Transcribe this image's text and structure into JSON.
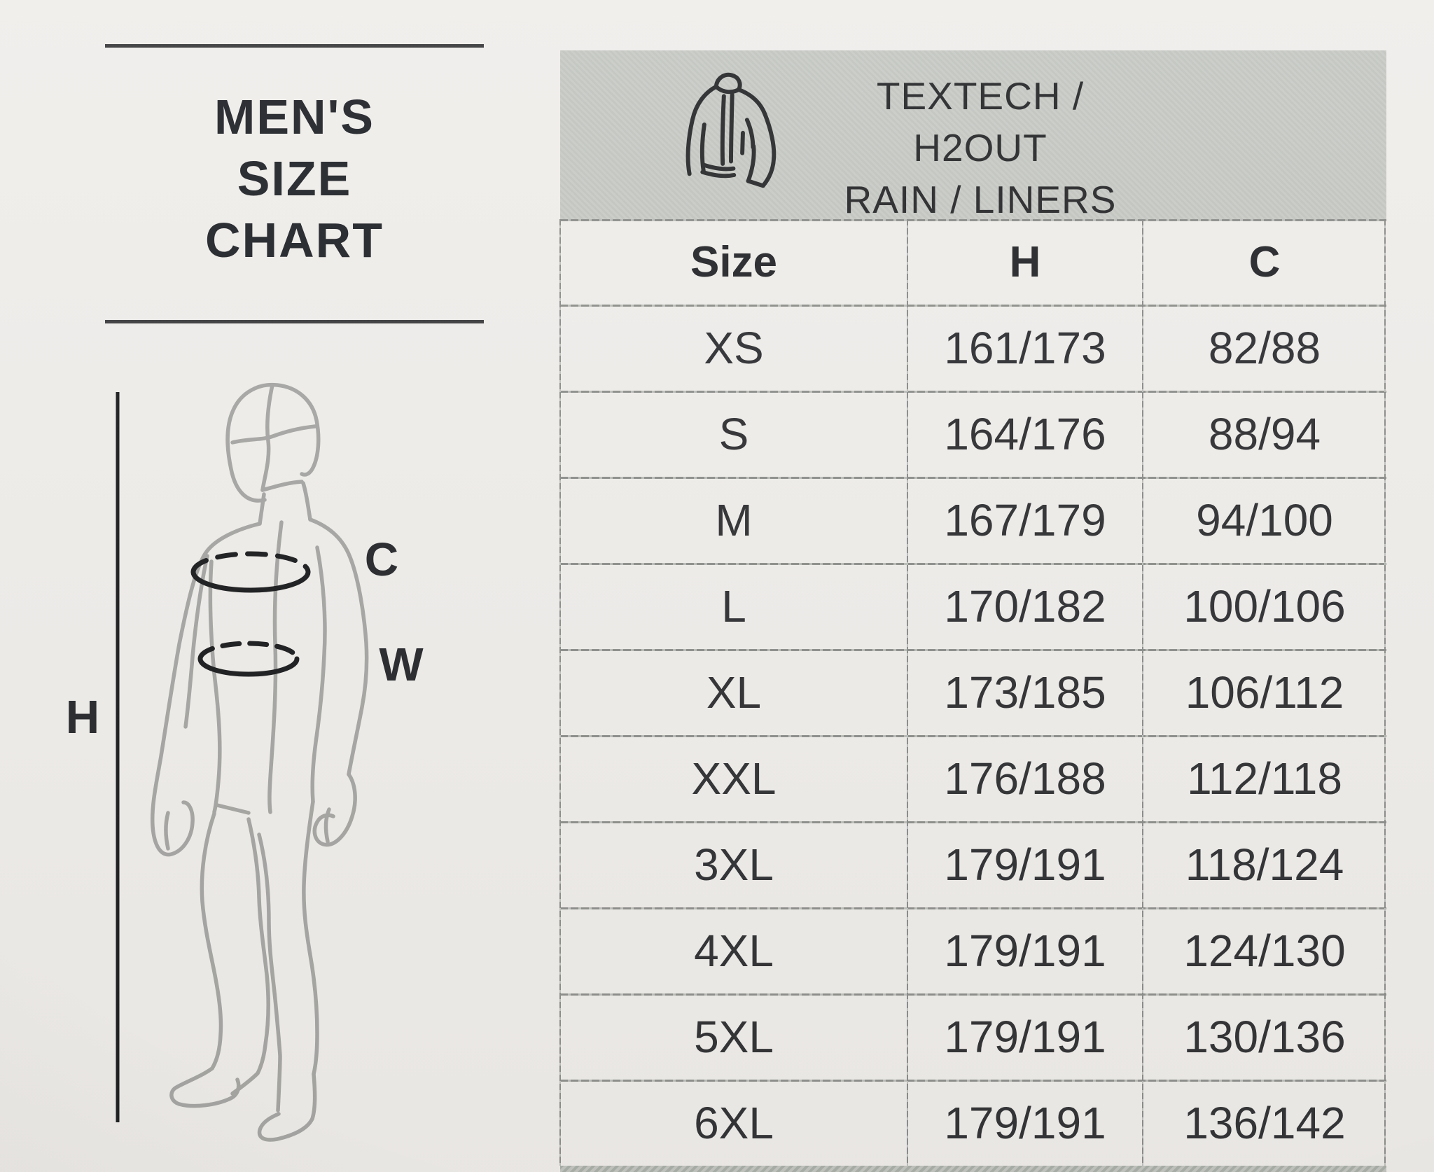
{
  "left_panel": {
    "title_lines": [
      "MEN'S",
      "SIZE",
      "CHART"
    ],
    "figure_labels": {
      "height": "H",
      "chest": "C",
      "waist": "W"
    }
  },
  "table": {
    "banner": {
      "icon": "jacket-icon",
      "line1": "TEXTECH / H2OUT",
      "line2": "RAIN / LINERS"
    },
    "columns": [
      "Size",
      "H",
      "C"
    ],
    "rows": [
      {
        "size": "XS",
        "h": "161/173",
        "c": "82/88"
      },
      {
        "size": "S",
        "h": "164/176",
        "c": "88/94"
      },
      {
        "size": "M",
        "h": "167/179",
        "c": "94/100"
      },
      {
        "size": "L",
        "h": "170/182",
        "c": "100/106"
      },
      {
        "size": "XL",
        "h": "173/185",
        "c": "106/112"
      },
      {
        "size": "XXL",
        "h": "176/188",
        "c": "112/118"
      },
      {
        "size": "3XL",
        "h": "179/191",
        "c": "118/124"
      },
      {
        "size": "4XL",
        "h": "179/191",
        "c": "124/130"
      },
      {
        "size": "5XL",
        "h": "179/191",
        "c": "130/136"
      },
      {
        "size": "6XL",
        "h": "179/191",
        "c": "136/142"
      }
    ]
  },
  "colors": {
    "paper": "#f0eeeb",
    "banner_gray": "#c6c9c4",
    "bottom_strip_gray": "#aab0a9",
    "ink": "#26282b",
    "sketch_gray": "#a6a6a4"
  }
}
